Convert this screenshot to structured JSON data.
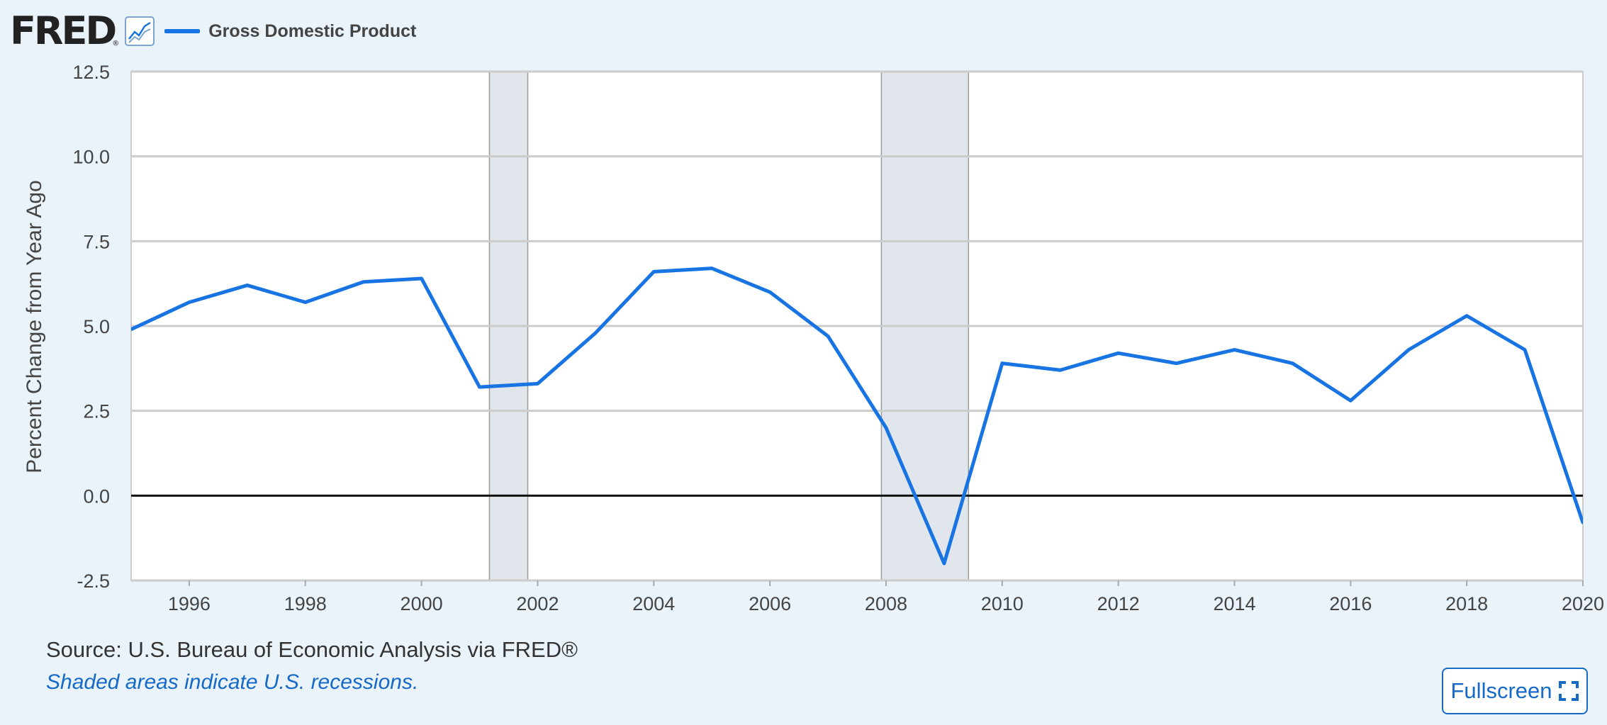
{
  "header": {
    "logo_text": "FRED",
    "logo_reg": "®",
    "legend_label": "Gross Domestic Product",
    "legend_color": "#1874e2"
  },
  "chart_data": {
    "type": "line",
    "title": "",
    "xlabel": "",
    "ylabel": "Percent Change from Year Ago",
    "xlim": [
      1995,
      2020
    ],
    "ylim": [
      -2.5,
      12.5
    ],
    "y_ticks": [
      "12.5",
      "10.0",
      "7.5",
      "5.0",
      "2.5",
      "0.0",
      "-2.5"
    ],
    "x_ticks": [
      "1996",
      "1998",
      "2000",
      "2002",
      "2004",
      "2006",
      "2008",
      "2010",
      "2012",
      "2014",
      "2016",
      "2018",
      "2020"
    ],
    "grid": true,
    "legend_position": "top-left",
    "series": [
      {
        "name": "Gross Domestic Product",
        "color": "#1874e2",
        "x": [
          1995,
          1996,
          1997,
          1998,
          1999,
          2000,
          2001,
          2002,
          2003,
          2004,
          2005,
          2006,
          2007,
          2008,
          2009,
          2010,
          2011,
          2012,
          2013,
          2014,
          2015,
          2016,
          2017,
          2018,
          2019,
          2020
        ],
        "y": [
          4.9,
          5.7,
          6.2,
          5.7,
          6.3,
          6.4,
          3.2,
          3.3,
          4.8,
          6.6,
          6.7,
          6.0,
          4.7,
          2.0,
          -2.0,
          3.9,
          3.7,
          4.2,
          3.9,
          4.3,
          3.9,
          2.8,
          4.3,
          5.3,
          4.3,
          -0.8
        ]
      }
    ],
    "recessions": [
      {
        "start": 2001.17,
        "end": 2001.83
      },
      {
        "start": 2007.92,
        "end": 2009.42
      }
    ],
    "zero_line": true
  },
  "footer": {
    "source": "Source: U.S. Bureau of Economic Analysis via FRED®",
    "note": "Shaded areas indicate U.S. recessions.",
    "fullscreen_label": "Fullscreen"
  }
}
